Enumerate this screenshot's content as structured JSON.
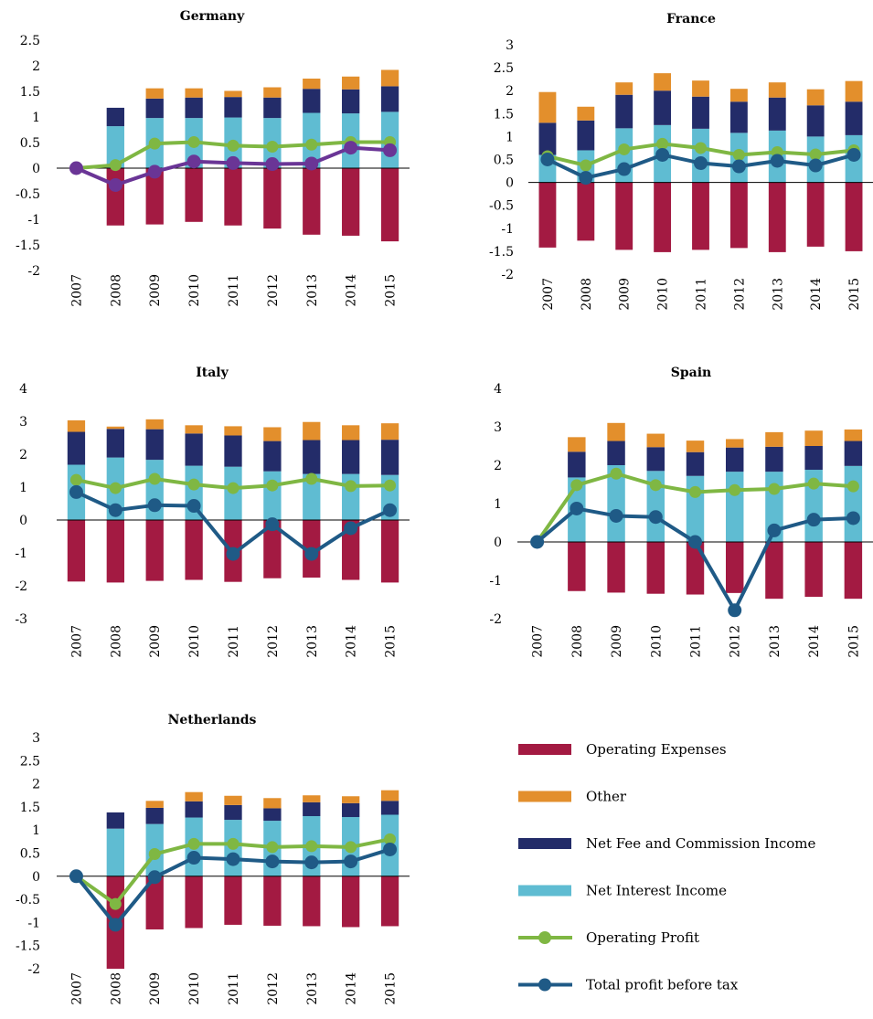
{
  "colors": {
    "operating_expenses": "#a31a42",
    "other": "#e38f2c",
    "net_fee": "#232c69",
    "net_interest": "#5fbcd2",
    "operating_profit": "#7fb743",
    "total_profit": "#1f5a86",
    "total_profit_germany": "#6a3596"
  },
  "legend": [
    {
      "key": "operating_expenses",
      "label": "Operating Expenses",
      "kind": "bar"
    },
    {
      "key": "other",
      "label": "Other",
      "kind": "bar"
    },
    {
      "key": "net_fee",
      "label": "Net Fee and Commission Income",
      "kind": "bar"
    },
    {
      "key": "net_interest",
      "label": "Net Interest Income",
      "kind": "bar"
    },
    {
      "key": "operating_profit",
      "label": "Operating Profit",
      "kind": "line"
    },
    {
      "key": "total_profit",
      "label": "Total profit before tax",
      "kind": "line"
    }
  ],
  "chart_data": [
    {
      "type": "bar",
      "title": "Germany",
      "categories": [
        "2007",
        "2008",
        "2009",
        "2010",
        "2011",
        "2012",
        "2013",
        "2014",
        "2015"
      ],
      "ylim": [
        -2,
        2.5
      ],
      "yticks": [
        "2.5",
        "2",
        "1.5",
        "1",
        "0.5",
        "0",
        "-0.5",
        "-1",
        "-1.5",
        "-2"
      ],
      "series": [
        {
          "key": "net_interest",
          "values": [
            0,
            0.82,
            0.98,
            0.98,
            0.99,
            0.98,
            1.08,
            1.07,
            1.1
          ]
        },
        {
          "key": "net_fee",
          "values": [
            0,
            0.36,
            0.38,
            0.4,
            0.4,
            0.4,
            0.47,
            0.47,
            0.5
          ]
        },
        {
          "key": "other",
          "values": [
            0,
            -0.2,
            0.2,
            0.18,
            0.12,
            0.2,
            0.2,
            0.25,
            0.32
          ]
        },
        {
          "key": "operating_expenses",
          "values": [
            0,
            -1.12,
            -1.1,
            -1.05,
            -1.12,
            -1.18,
            -1.3,
            -1.32,
            -1.43
          ]
        },
        {
          "key": "operating_profit",
          "values": [
            0,
            0.06,
            0.48,
            0.51,
            0.44,
            0.42,
            0.46,
            0.51,
            0.51
          ]
        },
        {
          "key": "total_profit",
          "values": [
            0,
            -0.33,
            -0.07,
            0.13,
            0.1,
            0.08,
            0.09,
            0.4,
            0.35
          ]
        }
      ]
    },
    {
      "type": "bar",
      "title": "France",
      "categories": [
        "2007",
        "2008",
        "2009",
        "2010",
        "2011",
        "2012",
        "2013",
        "2014",
        "2015"
      ],
      "ylim": [
        -2,
        3
      ],
      "yticks": [
        "3",
        "2.5",
        "2",
        "1.5",
        "1",
        "0.5",
        "0",
        "-0.5",
        "-1",
        "-1.5",
        "-2"
      ],
      "series": [
        {
          "key": "net_interest",
          "values": [
            0.6,
            0.7,
            1.18,
            1.25,
            1.17,
            1.08,
            1.13,
            1.0,
            1.03
          ]
        },
        {
          "key": "net_fee",
          "values": [
            0.7,
            0.65,
            0.73,
            0.75,
            0.7,
            0.68,
            0.72,
            0.68,
            0.73
          ]
        },
        {
          "key": "other",
          "values": [
            0.67,
            0.3,
            0.27,
            0.38,
            0.35,
            0.28,
            0.33,
            0.35,
            0.45
          ]
        },
        {
          "key": "operating_expenses",
          "values": [
            -1.42,
            -1.27,
            -1.47,
            -1.52,
            -1.47,
            -1.43,
            -1.52,
            -1.4,
            -1.5
          ]
        },
        {
          "key": "operating_profit",
          "values": [
            0.57,
            0.37,
            0.72,
            0.84,
            0.75,
            0.6,
            0.66,
            0.61,
            0.7
          ]
        },
        {
          "key": "total_profit",
          "values": [
            0.5,
            0.1,
            0.29,
            0.6,
            0.42,
            0.35,
            0.47,
            0.37,
            0.6
          ]
        }
      ]
    },
    {
      "type": "bar",
      "title": "Italy",
      "categories": [
        "2007",
        "2008",
        "2009",
        "2010",
        "2011",
        "2012",
        "2013",
        "2014",
        "2015"
      ],
      "ylim": [
        -3,
        4
      ],
      "yticks": [
        "4",
        "3",
        "2",
        "1",
        "0",
        "-1",
        "-2",
        "-3"
      ],
      "series": [
        {
          "key": "net_interest",
          "values": [
            1.68,
            1.9,
            1.83,
            1.65,
            1.62,
            1.48,
            1.4,
            1.4,
            1.37
          ]
        },
        {
          "key": "net_fee",
          "values": [
            1.0,
            0.87,
            0.93,
            0.98,
            0.95,
            0.92,
            1.03,
            1.03,
            1.07
          ]
        },
        {
          "key": "other",
          "values": [
            0.35,
            0.07,
            0.3,
            0.25,
            0.28,
            0.42,
            0.55,
            0.45,
            0.5
          ]
        },
        {
          "key": "operating_expenses",
          "values": [
            -1.87,
            -1.9,
            -1.85,
            -1.82,
            -1.88,
            -1.77,
            -1.75,
            -1.82,
            -1.9
          ]
        },
        {
          "key": "operating_profit",
          "values": [
            1.22,
            0.97,
            1.25,
            1.08,
            0.97,
            1.05,
            1.25,
            1.03,
            1.05
          ]
        },
        {
          "key": "total_profit",
          "values": [
            0.85,
            0.3,
            0.45,
            0.43,
            -1.03,
            -0.13,
            -1.03,
            -0.25,
            0.3
          ]
        }
      ]
    },
    {
      "type": "bar",
      "title": "Spain",
      "categories": [
        "2007",
        "2008",
        "2009",
        "2010",
        "2011",
        "2012",
        "2013",
        "2014",
        "2015"
      ],
      "ylim": [
        -2,
        4
      ],
      "yticks": [
        "4",
        "3",
        "2",
        "1",
        "0",
        "-1",
        "-2"
      ],
      "series": [
        {
          "key": "net_interest",
          "values": [
            0,
            1.68,
            2.0,
            1.85,
            1.72,
            1.83,
            1.83,
            1.88,
            1.98
          ]
        },
        {
          "key": "net_fee",
          "values": [
            0,
            0.67,
            0.63,
            0.62,
            0.62,
            0.63,
            0.65,
            0.62,
            0.65
          ]
        },
        {
          "key": "other",
          "values": [
            0,
            0.38,
            0.47,
            0.35,
            0.3,
            0.22,
            0.38,
            0.4,
            0.3
          ]
        },
        {
          "key": "operating_expenses",
          "values": [
            0,
            -1.28,
            -1.32,
            -1.35,
            -1.37,
            -1.33,
            -1.48,
            -1.43,
            -1.48
          ]
        },
        {
          "key": "operating_profit",
          "values": [
            0,
            1.48,
            1.78,
            1.48,
            1.3,
            1.35,
            1.38,
            1.52,
            1.45
          ]
        },
        {
          "key": "total_profit",
          "values": [
            0,
            0.87,
            0.68,
            0.65,
            0.0,
            -1.78,
            0.3,
            0.58,
            0.62
          ]
        }
      ]
    },
    {
      "type": "bar",
      "title": "Netherlands",
      "categories": [
        "2007",
        "2008",
        "2009",
        "2010",
        "2011",
        "2012",
        "2013",
        "2014",
        "2015"
      ],
      "ylim": [
        -2,
        3
      ],
      "yticks": [
        "3",
        "2.5",
        "2",
        "1.5",
        "1",
        "0.5",
        "0",
        "-0.5",
        "-1",
        "-1.5",
        "-2"
      ],
      "series": [
        {
          "key": "net_interest",
          "values": [
            0,
            1.03,
            1.13,
            1.27,
            1.22,
            1.2,
            1.3,
            1.28,
            1.33
          ]
        },
        {
          "key": "net_fee",
          "values": [
            0,
            0.35,
            0.35,
            0.35,
            0.32,
            0.27,
            0.3,
            0.3,
            0.3
          ]
        },
        {
          "key": "other",
          "values": [
            0,
            -0.75,
            0.15,
            0.2,
            0.2,
            0.22,
            0.15,
            0.15,
            0.23
          ]
        },
        {
          "key": "operating_expenses",
          "values": [
            0,
            -2.0,
            -1.15,
            -1.12,
            -1.05,
            -1.07,
            -1.08,
            -1.1,
            -1.08
          ]
        },
        {
          "key": "operating_profit",
          "values": [
            0,
            -0.6,
            0.48,
            0.7,
            0.7,
            0.63,
            0.65,
            0.63,
            0.8
          ]
        },
        {
          "key": "total_profit",
          "values": [
            0,
            -1.05,
            -0.02,
            0.4,
            0.37,
            0.32,
            0.3,
            0.32,
            0.58
          ]
        }
      ]
    }
  ]
}
